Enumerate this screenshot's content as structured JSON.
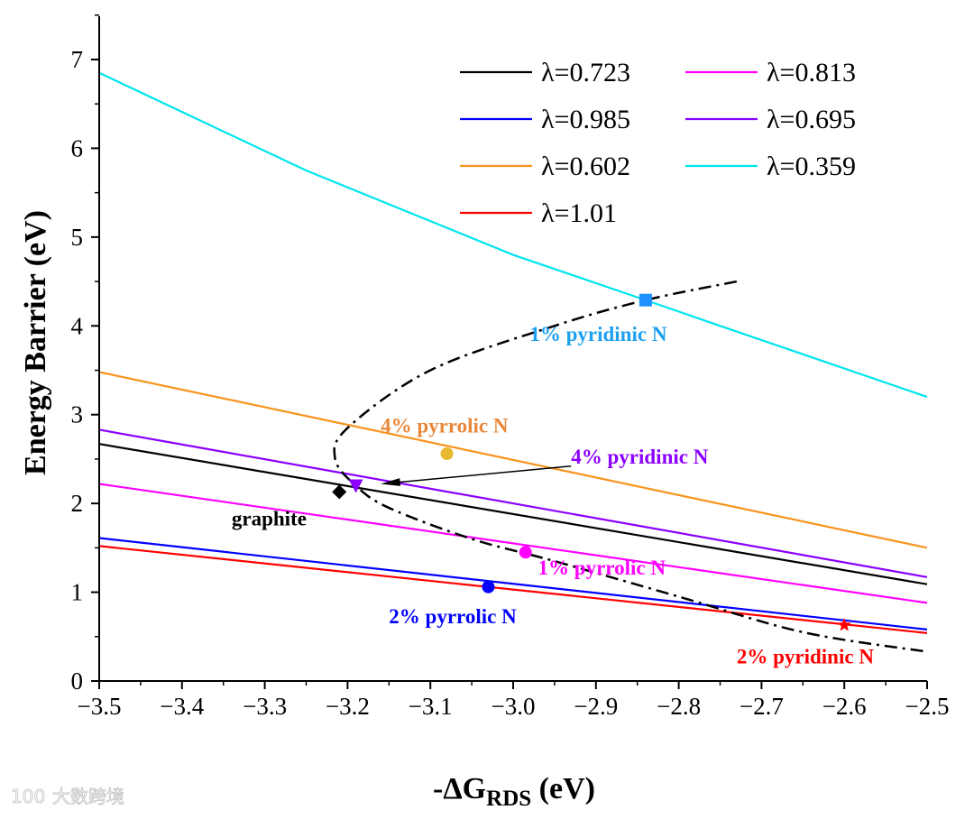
{
  "chart_data": {
    "type": "line",
    "xlabel_prefix": "-ΔG",
    "xlabel_sub": "RDS",
    "xlabel_suffix": " (eV)",
    "ylabel": "Energy Barrier (eV)",
    "xlim": [
      -3.5,
      -2.5
    ],
    "ylim": [
      0,
      7.5
    ],
    "xticks": [
      -3.5,
      -3.4,
      -3.3,
      -3.2,
      -3.1,
      -3.0,
      -2.9,
      -2.8,
      -2.7,
      -2.6,
      -2.5
    ],
    "xtick_labels": [
      "−3.5",
      "−3.4",
      "−3.3",
      "−3.2",
      "−3.1",
      "−3.0",
      "−2.9",
      "−2.8",
      "−2.7",
      "−2.6",
      "−2.5"
    ],
    "yticks": [
      0,
      1,
      2,
      3,
      4,
      5,
      6,
      7
    ],
    "ytick_labels": [
      "0",
      "1",
      "2",
      "3",
      "4",
      "5",
      "6",
      "7"
    ],
    "legend_position": "top-right",
    "series": [
      {
        "name": "λ=0.723",
        "color": "#000000",
        "x": [
          -3.5,
          -2.5
        ],
        "y": [
          2.67,
          1.09
        ]
      },
      {
        "name": "λ=0.813",
        "color": "#ff00ff",
        "x": [
          -3.5,
          -2.5
        ],
        "y": [
          2.22,
          0.88
        ]
      },
      {
        "name": "λ=0.985",
        "color": "#0000ff",
        "x": [
          -3.5,
          -2.5
        ],
        "y": [
          1.61,
          0.58
        ]
      },
      {
        "name": "λ=0.695",
        "color": "#8b00ff",
        "x": [
          -3.5,
          -2.5
        ],
        "y": [
          2.83,
          1.17
        ]
      },
      {
        "name": "λ=0.602",
        "color": "#f7941d",
        "x": [
          -3.5,
          -2.5
        ],
        "y": [
          3.48,
          1.5
        ]
      },
      {
        "name": "λ=0.359",
        "color": "#00e5ee",
        "x": [
          -3.5,
          -3.25,
          -3.0,
          -2.84,
          -2.75,
          -2.5
        ],
        "y": [
          6.85,
          5.75,
          4.8,
          4.29,
          4.0,
          3.2
        ]
      },
      {
        "name": "λ=1.01",
        "color": "#ff0000",
        "x": [
          -3.5,
          -2.5
        ],
        "y": [
          1.52,
          0.54
        ]
      }
    ],
    "points": [
      {
        "label": "graphite",
        "x": -3.21,
        "y": 2.13,
        "marker": "diamond",
        "color": "#000000",
        "label_color": "#000000",
        "lx": -3.34,
        "ly": 1.75
      },
      {
        "label": "4% pyridinic N",
        "x": -3.19,
        "y": 2.2,
        "marker": "triangle-down",
        "color": "#8b00ff",
        "label_color": "#8b00ff",
        "lx": -2.93,
        "ly": 2.45
      },
      {
        "label": "4% pyrrolic N",
        "x": -3.08,
        "y": 2.56,
        "marker": "circle",
        "color": "#e8b830",
        "label_color": "#e8883a",
        "lx": -3.16,
        "ly": 2.8
      },
      {
        "label": "1% pyrrolic N",
        "x": -2.985,
        "y": 1.45,
        "marker": "circle",
        "color": "#ff00ff",
        "label_color": "#ff00ff",
        "lx": -2.97,
        "ly": 1.2
      },
      {
        "label": "2% pyrrolic N",
        "x": -3.03,
        "y": 1.06,
        "marker": "circle",
        "color": "#0000ff",
        "label_color": "#0000ff",
        "lx": -3.15,
        "ly": 0.65
      },
      {
        "label": "2% pyridinic N",
        "x": -2.6,
        "y": 0.63,
        "marker": "star",
        "color": "#ff0000",
        "label_color": "#ff0000",
        "lx": -2.73,
        "ly": 0.2
      },
      {
        "label": "1% pyridinic N",
        "x": -2.84,
        "y": 4.29,
        "marker": "square",
        "color": "#1e90ff",
        "label_color": "#1ea0f0",
        "lx": -2.98,
        "ly": 3.83
      }
    ],
    "trend_curve": {
      "x": [
        -2.73,
        -2.84,
        -2.95,
        -3.1,
        -3.2,
        -3.215,
        -3.19,
        -3.15,
        -3.05,
        -2.95,
        -2.8,
        -2.65,
        -2.5
      ],
      "y": [
        4.5,
        4.29,
        4.0,
        3.5,
        2.85,
        2.5,
        2.2,
        1.95,
        1.6,
        1.35,
        0.95,
        0.55,
        0.33
      ]
    },
    "arrow": {
      "from": [
        -2.93,
        2.42
      ],
      "to": [
        -3.16,
        2.22
      ]
    }
  },
  "watermark": "大数跨境"
}
